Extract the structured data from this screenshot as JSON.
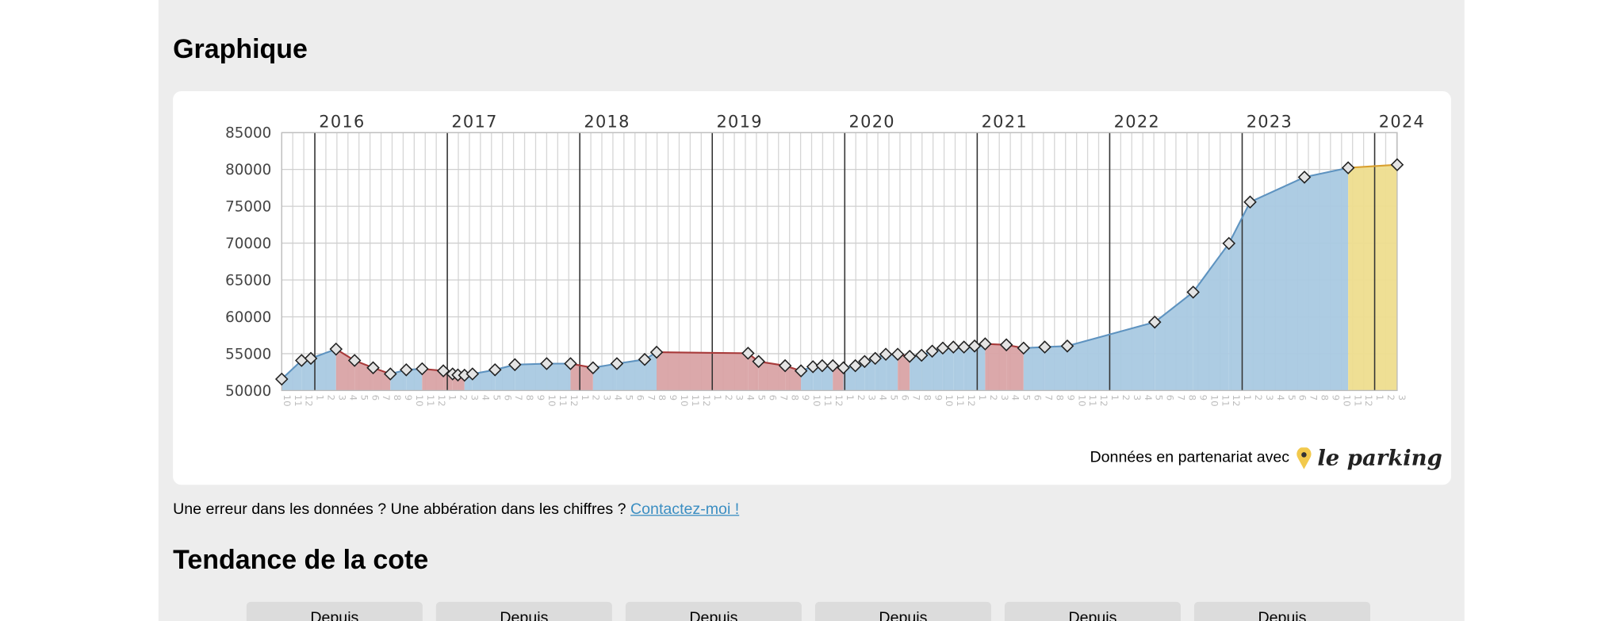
{
  "headings": {
    "chart": "Graphique",
    "trend": "Tendance de la cote"
  },
  "chart_data": {
    "type": "area",
    "x": [
      2015.75,
      2015.9,
      2015.97,
      2016.16,
      2016.3,
      2016.44,
      2016.57,
      2016.69,
      2016.81,
      2016.97,
      2017.04,
      2017.08,
      2017.13,
      2017.19,
      2017.36,
      2017.51,
      2017.75,
      2017.93,
      2018.1,
      2018.28,
      2018.49,
      2018.58,
      2019.27,
      2019.35,
      2019.55,
      2019.67,
      2019.76,
      2019.83,
      2019.91,
      2019.99,
      2020.08,
      2020.15,
      2020.23,
      2020.31,
      2020.4,
      2020.49,
      2020.58,
      2020.66,
      2020.74,
      2020.82,
      2020.9,
      2020.98,
      2021.06,
      2021.22,
      2021.35,
      2021.51,
      2021.68,
      2022.34,
      2022.63,
      2022.9,
      2023.06,
      2023.47,
      2023.8,
      2024.17
    ],
    "values": [
      51550,
      54080,
      54360,
      55620,
      54080,
      53090,
      52250,
      52810,
      52950,
      52670,
      52250,
      52110,
      52080,
      52250,
      52810,
      53510,
      53650,
      53650,
      53090,
      53650,
      54220,
      55200,
      55060,
      53940,
      53370,
      52670,
      53230,
      53370,
      53370,
      53090,
      53370,
      53940,
      54360,
      54920,
      54920,
      54640,
      54780,
      55340,
      55760,
      55900,
      55900,
      56040,
      56330,
      56200,
      55760,
      55900,
      56040,
      59280,
      63350,
      69960,
      75580,
      78950,
      80220,
      80640
    ],
    "xlim": [
      2015.75,
      2024.17
    ],
    "xticks": [
      2016,
      2017,
      2018,
      2019,
      2020,
      2021,
      2022,
      2023,
      2024
    ],
    "month_ticks": [
      10,
      11,
      12,
      1,
      2,
      3,
      4,
      5,
      6,
      7,
      8,
      9,
      10,
      11,
      12,
      1,
      2,
      3,
      4,
      5,
      6,
      7,
      8,
      9,
      10,
      11,
      12,
      1,
      2,
      3,
      4,
      5,
      6,
      7,
      8,
      9,
      10,
      11,
      12,
      1,
      2,
      3,
      4,
      5,
      6,
      7,
      8,
      9,
      10,
      11,
      12,
      1,
      2,
      3,
      4,
      5,
      6,
      7,
      8,
      9,
      10,
      11,
      12,
      1,
      2,
      3,
      4,
      5,
      6,
      7,
      8,
      9,
      10,
      11,
      12,
      1,
      2,
      3,
      4,
      5,
      6,
      7,
      8,
      9,
      10,
      11,
      12,
      1,
      2,
      3,
      4,
      5,
      6,
      7,
      8,
      9,
      10,
      11,
      12,
      1,
      2,
      3
    ],
    "ylim": [
      50000,
      85000
    ],
    "yticks": [
      50000,
      55000,
      60000,
      65000,
      70000,
      75000,
      80000,
      85000
    ],
    "grid": true,
    "colors": {
      "rising": "#a9c9e2",
      "falling": "#d9a3a5",
      "latest": "#eedd8e"
    },
    "line_colors": {
      "rising": "#5e93c0",
      "falling": "#a83a3a",
      "latest": "#d9a030"
    }
  },
  "source": {
    "text": "Données en partenariat avec",
    "brand": "le parking"
  },
  "note": {
    "text": "Une erreur dans les données ? Une abbération dans les chiffres ?",
    "link": "Contactez-moi !"
  },
  "trend": {
    "buttons": [
      "Depuis",
      "Depuis",
      "Depuis",
      "Depuis",
      "Depuis",
      "Depuis"
    ]
  }
}
